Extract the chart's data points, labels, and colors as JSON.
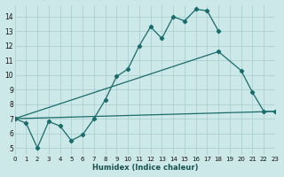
{
  "xlabel": "Humidex (Indice chaleur)",
  "bg_color": "#cce8e8",
  "line_color": "#1a6b6b",
  "xlim": [
    0,
    23
  ],
  "ylim": [
    4.5,
    14.8
  ],
  "xticks": [
    0,
    1,
    2,
    3,
    4,
    5,
    6,
    7,
    8,
    9,
    10,
    11,
    12,
    13,
    14,
    15,
    16,
    17,
    18,
    19,
    20,
    21,
    22,
    23
  ],
  "yticks": [
    5,
    6,
    7,
    8,
    9,
    10,
    11,
    12,
    13,
    14
  ],
  "lines": [
    {
      "x": [
        0,
        1,
        2,
        3,
        4,
        5,
        6,
        7,
        8,
        9,
        10,
        11,
        12,
        13,
        14,
        15,
        16,
        17,
        18
      ],
      "y": [
        7.0,
        6.7,
        5.0,
        6.8,
        6.5,
        5.5,
        5.9,
        7.0,
        8.3,
        9.9,
        10.4,
        12.0,
        13.3,
        12.5,
        14.0,
        13.7,
        14.5,
        14.4,
        13.0
      ]
    },
    {
      "x": [
        0,
        18,
        20,
        21,
        22,
        23
      ],
      "y": [
        7.0,
        11.6,
        10.3,
        8.8,
        7.5,
        7.5
      ]
    },
    {
      "x": [
        0,
        23
      ],
      "y": [
        7.0,
        7.5
      ]
    }
  ]
}
